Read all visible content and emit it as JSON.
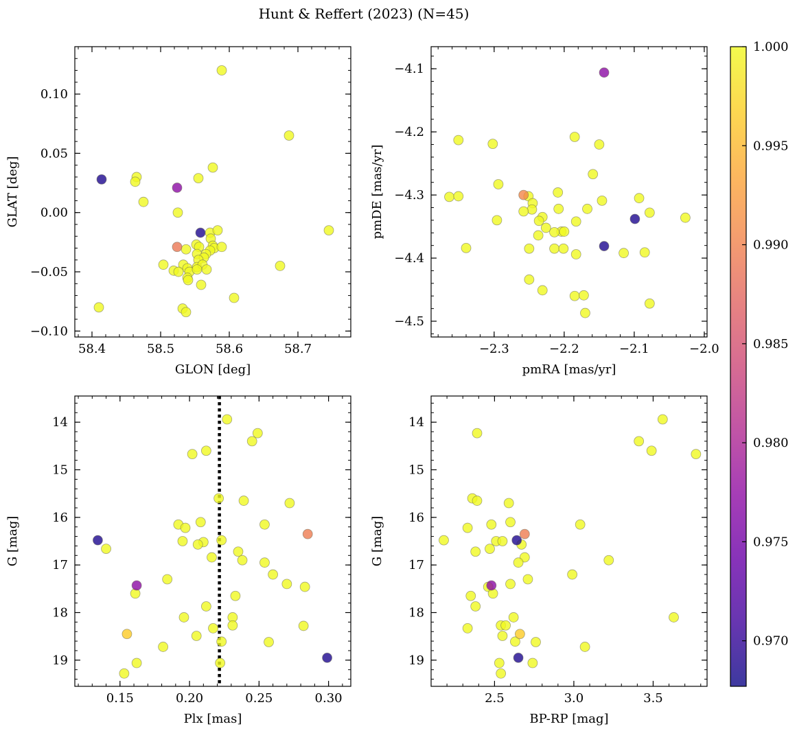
{
  "figure": {
    "title": "Hunt & Reffert (2023) (N=45)"
  },
  "colorbar": {
    "range": [
      0.9677,
      1.0
    ],
    "ticks": [
      0.97,
      0.975,
      0.98,
      0.985,
      0.99,
      0.995,
      1.0
    ],
    "tick_labels": [
      "0.970",
      "0.975",
      "0.980",
      "0.985",
      "0.990",
      "0.995",
      "1.000"
    ],
    "colormap": "plasma"
  },
  "chart_data": [
    {
      "type": "scatter",
      "xlabel": "GLON [deg]",
      "ylabel": "GLAT [deg]",
      "xlim": [
        58.375,
        58.777
      ],
      "ylim": [
        -0.105,
        0.14
      ],
      "xticks": [
        58.4,
        58.5,
        58.6,
        58.7
      ],
      "xtick_labels": [
        "58.4",
        "58.5",
        "58.6",
        "58.7"
      ],
      "xminor": 0.02,
      "yticks": [
        -0.1,
        -0.05,
        0.0,
        0.05,
        0.1
      ],
      "ytick_labels": [
        "−0.10",
        "−0.05",
        "0.00",
        "0.05",
        "0.10"
      ],
      "yminor": 0.01,
      "invert_y": false,
      "points": [
        {
          "x": 58.589,
          "y": 0.12,
          "c": 1.0
        },
        {
          "x": 58.687,
          "y": 0.065,
          "c": 1.0
        },
        {
          "x": 58.576,
          "y": 0.038,
          "c": 1.0
        },
        {
          "x": 58.465,
          "y": 0.03,
          "c": 1.0
        },
        {
          "x": 58.463,
          "y": 0.026,
          "c": 1.0
        },
        {
          "x": 58.555,
          "y": 0.029,
          "c": 1.0
        },
        {
          "x": 58.414,
          "y": 0.028,
          "c": 0.9687
        },
        {
          "x": 58.524,
          "y": 0.021,
          "c": 0.977
        },
        {
          "x": 58.475,
          "y": 0.009,
          "c": 1.0
        },
        {
          "x": 58.525,
          "y": 0.0,
          "c": 1.0
        },
        {
          "x": 58.745,
          "y": -0.015,
          "c": 1.0
        },
        {
          "x": 58.558,
          "y": -0.017,
          "c": 0.9687
        },
        {
          "x": 58.572,
          "y": -0.017,
          "c": 1.0
        },
        {
          "x": 58.583,
          "y": -0.015,
          "c": 1.0
        },
        {
          "x": 58.573,
          "y": -0.022,
          "c": 1.0
        },
        {
          "x": 58.524,
          "y": -0.029,
          "c": 0.989
        },
        {
          "x": 58.552,
          "y": -0.027,
          "c": 1.0
        },
        {
          "x": 58.576,
          "y": -0.028,
          "c": 1.0
        },
        {
          "x": 58.578,
          "y": -0.03,
          "c": 1.0
        },
        {
          "x": 58.589,
          "y": -0.029,
          "c": 1.0
        },
        {
          "x": 58.556,
          "y": -0.029,
          "c": 1.0
        },
        {
          "x": 58.572,
          "y": -0.032,
          "c": 1.0
        },
        {
          "x": 58.553,
          "y": -0.035,
          "c": 1.0
        },
        {
          "x": 58.566,
          "y": -0.035,
          "c": 1.0
        },
        {
          "x": 58.563,
          "y": -0.038,
          "c": 1.0
        },
        {
          "x": 58.555,
          "y": -0.04,
          "c": 1.0
        },
        {
          "x": 58.504,
          "y": -0.044,
          "c": 1.0
        },
        {
          "x": 58.533,
          "y": -0.044,
          "c": 1.0
        },
        {
          "x": 58.674,
          "y": -0.045,
          "c": 1.0
        },
        {
          "x": 58.553,
          "y": -0.046,
          "c": 1.0
        },
        {
          "x": 58.539,
          "y": -0.047,
          "c": 1.0
        },
        {
          "x": 58.561,
          "y": -0.044,
          "c": 1.0
        },
        {
          "x": 58.519,
          "y": -0.049,
          "c": 1.0
        },
        {
          "x": 58.537,
          "y": -0.031,
          "c": 1.0
        },
        {
          "x": 58.526,
          "y": -0.05,
          "c": 1.0
        },
        {
          "x": 58.542,
          "y": -0.05,
          "c": 1.0
        },
        {
          "x": 58.553,
          "y": -0.048,
          "c": 1.0
        },
        {
          "x": 58.567,
          "y": -0.048,
          "c": 1.0
        },
        {
          "x": 58.539,
          "y": -0.055,
          "c": 1.0
        },
        {
          "x": 58.54,
          "y": -0.057,
          "c": 1.0
        },
        {
          "x": 58.559,
          "y": -0.061,
          "c": 1.0
        },
        {
          "x": 58.607,
          "y": -0.072,
          "c": 1.0
        },
        {
          "x": 58.41,
          "y": -0.08,
          "c": 1.0
        },
        {
          "x": 58.532,
          "y": -0.081,
          "c": 1.0
        },
        {
          "x": 58.537,
          "y": -0.084,
          "c": 1.0
        }
      ]
    },
    {
      "type": "scatter",
      "xlabel": "pmRA [mas/yr]",
      "ylabel": "pmDE [mas/yr]",
      "xlim": [
        -2.39,
        -1.996
      ],
      "ylim": [
        -4.525,
        -4.065
      ],
      "xticks": [
        -2.3,
        -2.2,
        -2.1,
        -2.0
      ],
      "xtick_labels": [
        "−2.3",
        "−2.2",
        "−2.1",
        "−2.0"
      ],
      "xminor": 0.02,
      "yticks": [
        -4.5,
        -4.4,
        -4.3,
        -4.2,
        -4.1
      ],
      "ytick_labels": [
        "−4.5",
        "−4.4",
        "−4.3",
        "−4.2",
        "−4.1"
      ],
      "yminor": 0.02,
      "invert_y": false,
      "points": [
        {
          "x": -2.143,
          "y": -4.106,
          "c": 0.977
        },
        {
          "x": -2.185,
          "y": -4.208,
          "c": 1.0
        },
        {
          "x": -2.351,
          "y": -4.213,
          "c": 1.0
        },
        {
          "x": -2.302,
          "y": -4.219,
          "c": 1.0
        },
        {
          "x": -2.15,
          "y": -4.22,
          "c": 1.0
        },
        {
          "x": -2.159,
          "y": -4.267,
          "c": 1.0
        },
        {
          "x": -2.294,
          "y": -4.283,
          "c": 1.0
        },
        {
          "x": -2.209,
          "y": -4.296,
          "c": 1.0
        },
        {
          "x": -2.258,
          "y": -4.3,
          "c": 0.9905
        },
        {
          "x": -2.251,
          "y": -4.302,
          "c": 1.0
        },
        {
          "x": -2.364,
          "y": -4.303,
          "c": 1.0
        },
        {
          "x": -2.351,
          "y": -4.302,
          "c": 1.0
        },
        {
          "x": -2.093,
          "y": -4.305,
          "c": 1.0
        },
        {
          "x": -2.146,
          "y": -4.309,
          "c": 1.0
        },
        {
          "x": -2.245,
          "y": -4.313,
          "c": 1.0
        },
        {
          "x": -2.246,
          "y": -4.323,
          "c": 1.0
        },
        {
          "x": -2.208,
          "y": -4.322,
          "c": 1.0
        },
        {
          "x": -2.167,
          "y": -4.322,
          "c": 1.0
        },
        {
          "x": -2.258,
          "y": -4.326,
          "c": 1.0
        },
        {
          "x": -2.078,
          "y": -4.328,
          "c": 1.0
        },
        {
          "x": -2.231,
          "y": -4.335,
          "c": 1.0
        },
        {
          "x": -2.027,
          "y": -4.336,
          "c": 1.0
        },
        {
          "x": -2.099,
          "y": -4.338,
          "c": 0.9687
        },
        {
          "x": -2.296,
          "y": -4.34,
          "c": 1.0
        },
        {
          "x": -2.236,
          "y": -4.341,
          "c": 1.0
        },
        {
          "x": -2.183,
          "y": -4.342,
          "c": 1.0
        },
        {
          "x": -2.226,
          "y": -4.352,
          "c": 1.0
        },
        {
          "x": -2.204,
          "y": -4.358,
          "c": 1.0
        },
        {
          "x": -2.214,
          "y": -4.359,
          "c": 1.0
        },
        {
          "x": -2.2,
          "y": -4.358,
          "c": 1.0
        },
        {
          "x": -2.237,
          "y": -4.364,
          "c": 1.0
        },
        {
          "x": -2.143,
          "y": -4.381,
          "c": 0.9687
        },
        {
          "x": -2.34,
          "y": -4.384,
          "c": 1.0
        },
        {
          "x": -2.25,
          "y": -4.385,
          "c": 1.0
        },
        {
          "x": -2.214,
          "y": -4.385,
          "c": 1.0
        },
        {
          "x": -2.201,
          "y": -4.385,
          "c": 1.0
        },
        {
          "x": -2.115,
          "y": -4.392,
          "c": 1.0
        },
        {
          "x": -2.085,
          "y": -4.391,
          "c": 1.0
        },
        {
          "x": -2.183,
          "y": -4.394,
          "c": 1.0
        },
        {
          "x": -2.25,
          "y": -4.434,
          "c": 1.0
        },
        {
          "x": -2.231,
          "y": -4.451,
          "c": 1.0
        },
        {
          "x": -2.185,
          "y": -4.46,
          "c": 1.0
        },
        {
          "x": -2.172,
          "y": -4.459,
          "c": 1.0
        },
        {
          "x": -2.078,
          "y": -4.472,
          "c": 1.0
        },
        {
          "x": -2.17,
          "y": -4.487,
          "c": 1.0
        }
      ]
    },
    {
      "type": "scatter",
      "xlabel": "Plx [mas]",
      "ylabel": "G [mag]",
      "xlim": [
        0.1175,
        0.316
      ],
      "ylim": [
        19.55,
        13.45
      ],
      "xticks": [
        0.15,
        0.2,
        0.25,
        0.3
      ],
      "xtick_labels": [
        "0.15",
        "0.20",
        "0.25",
        "0.30"
      ],
      "xminor": 0.01,
      "yticks": [
        14,
        15,
        16,
        17,
        18,
        19
      ],
      "ytick_labels": [
        "14",
        "15",
        "16",
        "17",
        "18",
        "19"
      ],
      "yminor": 0.2,
      "invert_y": true,
      "vline": 0.2215,
      "points": [
        {
          "x": 0.227,
          "y": 13.94,
          "c": 1.0
        },
        {
          "x": 0.249,
          "y": 14.23,
          "c": 1.0
        },
        {
          "x": 0.245,
          "y": 14.4,
          "c": 1.0
        },
        {
          "x": 0.212,
          "y": 14.6,
          "c": 1.0
        },
        {
          "x": 0.202,
          "y": 14.67,
          "c": 1.0
        },
        {
          "x": 0.221,
          "y": 15.6,
          "c": 1.0
        },
        {
          "x": 0.239,
          "y": 15.65,
          "c": 1.0
        },
        {
          "x": 0.272,
          "y": 15.7,
          "c": 1.0
        },
        {
          "x": 0.208,
          "y": 16.1,
          "c": 1.0
        },
        {
          "x": 0.192,
          "y": 16.15,
          "c": 1.0
        },
        {
          "x": 0.254,
          "y": 16.15,
          "c": 1.0
        },
        {
          "x": 0.197,
          "y": 16.22,
          "c": 1.0
        },
        {
          "x": 0.285,
          "y": 16.35,
          "c": 0.9895
        },
        {
          "x": 0.134,
          "y": 16.48,
          "c": 0.9687
        },
        {
          "x": 0.223,
          "y": 16.48,
          "c": 1.0
        },
        {
          "x": 0.195,
          "y": 16.5,
          "c": 1.0
        },
        {
          "x": 0.21,
          "y": 16.52,
          "c": 1.0
        },
        {
          "x": 0.206,
          "y": 16.57,
          "c": 1.0
        },
        {
          "x": 0.14,
          "y": 16.66,
          "c": 1.0
        },
        {
          "x": 0.235,
          "y": 16.72,
          "c": 1.0
        },
        {
          "x": 0.216,
          "y": 16.84,
          "c": 1.0
        },
        {
          "x": 0.238,
          "y": 16.9,
          "c": 1.0
        },
        {
          "x": 0.254,
          "y": 16.95,
          "c": 1.0
        },
        {
          "x": 0.26,
          "y": 17.2,
          "c": 1.0
        },
        {
          "x": 0.184,
          "y": 17.3,
          "c": 1.0
        },
        {
          "x": 0.27,
          "y": 17.4,
          "c": 1.0
        },
        {
          "x": 0.162,
          "y": 17.43,
          "c": 0.977
        },
        {
          "x": 0.283,
          "y": 17.46,
          "c": 1.0
        },
        {
          "x": 0.161,
          "y": 17.6,
          "c": 1.0
        },
        {
          "x": 0.233,
          "y": 17.65,
          "c": 1.0
        },
        {
          "x": 0.212,
          "y": 17.87,
          "c": 1.0
        },
        {
          "x": 0.196,
          "y": 18.1,
          "c": 1.0
        },
        {
          "x": 0.231,
          "y": 18.1,
          "c": 1.0
        },
        {
          "x": 0.282,
          "y": 18.28,
          "c": 1.0
        },
        {
          "x": 0.231,
          "y": 18.27,
          "c": 1.0
        },
        {
          "x": 0.217,
          "y": 18.33,
          "c": 1.0
        },
        {
          "x": 0.155,
          "y": 18.45,
          "c": 0.9965
        },
        {
          "x": 0.205,
          "y": 18.49,
          "c": 1.0
        },
        {
          "x": 0.223,
          "y": 18.61,
          "c": 1.0
        },
        {
          "x": 0.257,
          "y": 18.62,
          "c": 1.0
        },
        {
          "x": 0.181,
          "y": 18.72,
          "c": 1.0
        },
        {
          "x": 0.299,
          "y": 18.95,
          "c": 0.9687
        },
        {
          "x": 0.162,
          "y": 19.06,
          "c": 1.0
        },
        {
          "x": 0.222,
          "y": 19.06,
          "c": 1.0
        },
        {
          "x": 0.153,
          "y": 19.28,
          "c": 1.0
        }
      ]
    },
    {
      "type": "scatter",
      "xlabel": "BP-RP [mag]",
      "ylabel": "G [mag]",
      "xlim": [
        2.1,
        3.84
      ],
      "ylim": [
        19.55,
        13.45
      ],
      "xticks": [
        2.5,
        3.0,
        3.5
      ],
      "xtick_labels": [
        "2.5",
        "3.0",
        "3.5"
      ],
      "xminor": 0.1,
      "yticks": [
        14,
        15,
        16,
        17,
        18,
        19
      ],
      "ytick_labels": [
        "14",
        "15",
        "16",
        "17",
        "18",
        "19"
      ],
      "yminor": 0.2,
      "invert_y": true,
      "points": [
        {
          "x": 3.56,
          "y": 13.94,
          "c": 1.0
        },
        {
          "x": 2.39,
          "y": 14.23,
          "c": 1.0
        },
        {
          "x": 3.41,
          "y": 14.4,
          "c": 1.0
        },
        {
          "x": 3.49,
          "y": 14.6,
          "c": 1.0
        },
        {
          "x": 3.77,
          "y": 14.67,
          "c": 1.0
        },
        {
          "x": 2.36,
          "y": 15.6,
          "c": 1.0
        },
        {
          "x": 2.39,
          "y": 15.65,
          "c": 1.0
        },
        {
          "x": 2.59,
          "y": 15.7,
          "c": 1.0
        },
        {
          "x": 2.6,
          "y": 16.1,
          "c": 1.0
        },
        {
          "x": 2.48,
          "y": 16.15,
          "c": 1.0
        },
        {
          "x": 3.04,
          "y": 16.15,
          "c": 1.0
        },
        {
          "x": 2.33,
          "y": 16.22,
          "c": 1.0
        },
        {
          "x": 2.69,
          "y": 16.35,
          "c": 0.9895
        },
        {
          "x": 2.64,
          "y": 16.48,
          "c": 0.9687
        },
        {
          "x": 2.18,
          "y": 16.48,
          "c": 1.0
        },
        {
          "x": 2.51,
          "y": 16.5,
          "c": 1.0
        },
        {
          "x": 2.55,
          "y": 16.5,
          "c": 1.0
        },
        {
          "x": 2.67,
          "y": 16.57,
          "c": 1.0
        },
        {
          "x": 2.47,
          "y": 16.66,
          "c": 1.0
        },
        {
          "x": 2.38,
          "y": 16.72,
          "c": 1.0
        },
        {
          "x": 2.69,
          "y": 16.84,
          "c": 1.0
        },
        {
          "x": 3.22,
          "y": 16.9,
          "c": 1.0
        },
        {
          "x": 2.65,
          "y": 16.95,
          "c": 1.0
        },
        {
          "x": 2.99,
          "y": 17.2,
          "c": 1.0
        },
        {
          "x": 2.71,
          "y": 17.3,
          "c": 1.0
        },
        {
          "x": 2.6,
          "y": 17.4,
          "c": 1.0
        },
        {
          "x": 2.48,
          "y": 17.43,
          "c": 0.977
        },
        {
          "x": 2.46,
          "y": 17.46,
          "c": 1.0
        },
        {
          "x": 2.49,
          "y": 17.6,
          "c": 1.0
        },
        {
          "x": 2.35,
          "y": 17.65,
          "c": 1.0
        },
        {
          "x": 2.38,
          "y": 17.87,
          "c": 1.0
        },
        {
          "x": 3.63,
          "y": 18.1,
          "c": 1.0
        },
        {
          "x": 2.62,
          "y": 18.1,
          "c": 1.0
        },
        {
          "x": 2.54,
          "y": 18.27,
          "c": 1.0
        },
        {
          "x": 2.57,
          "y": 18.27,
          "c": 1.0
        },
        {
          "x": 2.33,
          "y": 18.33,
          "c": 1.0
        },
        {
          "x": 2.66,
          "y": 18.45,
          "c": 0.9965
        },
        {
          "x": 2.55,
          "y": 18.49,
          "c": 1.0
        },
        {
          "x": 2.63,
          "y": 18.61,
          "c": 1.0
        },
        {
          "x": 2.76,
          "y": 18.62,
          "c": 1.0
        },
        {
          "x": 3.07,
          "y": 18.72,
          "c": 1.0
        },
        {
          "x": 2.65,
          "y": 18.95,
          "c": 0.9687
        },
        {
          "x": 2.53,
          "y": 19.06,
          "c": 1.0
        },
        {
          "x": 2.74,
          "y": 19.06,
          "c": 1.0
        },
        {
          "x": 2.54,
          "y": 19.28,
          "c": 1.0
        }
      ]
    }
  ]
}
